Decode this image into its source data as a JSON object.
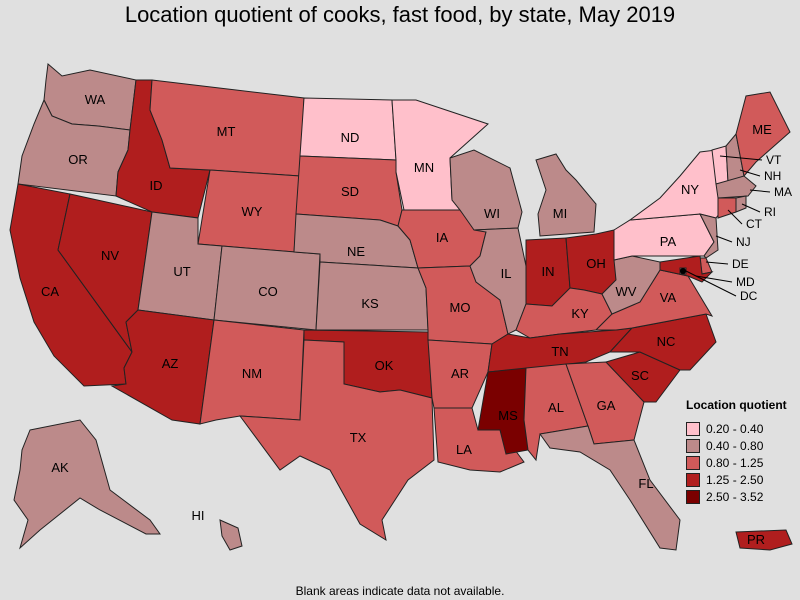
{
  "title": "Location quotient of cooks, fast food, by state, May 2019",
  "footnote": "Blank areas indicate data not available.",
  "legend": {
    "title": "Location quotient",
    "items": [
      {
        "label": "0.20 - 0.40",
        "color": "#ffc0cb"
      },
      {
        "label": "0.40 - 0.80",
        "color": "#bc8a8a"
      },
      {
        "label": "0.80 - 1.25",
        "color": "#d15a5a"
      },
      {
        "label": "1.25 - 2.50",
        "color": "#b01e1e"
      },
      {
        "label": "2.50 - 3.52",
        "color": "#7a0000"
      }
    ]
  },
  "states": [
    {
      "abbr": "WA",
      "class": 1
    },
    {
      "abbr": "OR",
      "class": 1
    },
    {
      "abbr": "CA",
      "class": 3
    },
    {
      "abbr": "NV",
      "class": 3
    },
    {
      "abbr": "ID",
      "class": 3
    },
    {
      "abbr": "MT",
      "class": 2
    },
    {
      "abbr": "WY",
      "class": 2
    },
    {
      "abbr": "UT",
      "class": 1
    },
    {
      "abbr": "AZ",
      "class": 3
    },
    {
      "abbr": "CO",
      "class": 1
    },
    {
      "abbr": "NM",
      "class": 2
    },
    {
      "abbr": "ND",
      "class": 0
    },
    {
      "abbr": "SD",
      "class": 2
    },
    {
      "abbr": "NE",
      "class": 1
    },
    {
      "abbr": "KS",
      "class": 1
    },
    {
      "abbr": "OK",
      "class": 3
    },
    {
      "abbr": "TX",
      "class": 2
    },
    {
      "abbr": "MN",
      "class": 0
    },
    {
      "abbr": "IA",
      "class": 2
    },
    {
      "abbr": "MO",
      "class": 2
    },
    {
      "abbr": "AR",
      "class": 2
    },
    {
      "abbr": "LA",
      "class": 2
    },
    {
      "abbr": "WI",
      "class": 1
    },
    {
      "abbr": "IL",
      "class": 1
    },
    {
      "abbr": "MI",
      "class": 1
    },
    {
      "abbr": "IN",
      "class": 3
    },
    {
      "abbr": "OH",
      "class": 3
    },
    {
      "abbr": "KY",
      "class": 2
    },
    {
      "abbr": "TN",
      "class": 3
    },
    {
      "abbr": "MS",
      "class": 4
    },
    {
      "abbr": "AL",
      "class": 2
    },
    {
      "abbr": "GA",
      "class": 2
    },
    {
      "abbr": "FL",
      "class": 1
    },
    {
      "abbr": "SC",
      "class": 3
    },
    {
      "abbr": "NC",
      "class": 3
    },
    {
      "abbr": "VA",
      "class": 2
    },
    {
      "abbr": "WV",
      "class": 1
    },
    {
      "abbr": "PA",
      "class": 0
    },
    {
      "abbr": "NY",
      "class": 0
    },
    {
      "abbr": "VT",
      "class": 0
    },
    {
      "abbr": "NH",
      "class": 1
    },
    {
      "abbr": "ME",
      "class": 2
    },
    {
      "abbr": "MA",
      "class": 1
    },
    {
      "abbr": "RI",
      "class": 1
    },
    {
      "abbr": "CT",
      "class": 2
    },
    {
      "abbr": "NJ",
      "class": 1
    },
    {
      "abbr": "DE",
      "class": 2
    },
    {
      "abbr": "MD",
      "class": 3
    },
    {
      "abbr": "DC",
      "class": 1
    },
    {
      "abbr": "AK",
      "class": 1
    },
    {
      "abbr": "HI",
      "class": 1
    },
    {
      "abbr": "PR",
      "class": 3
    }
  ]
}
